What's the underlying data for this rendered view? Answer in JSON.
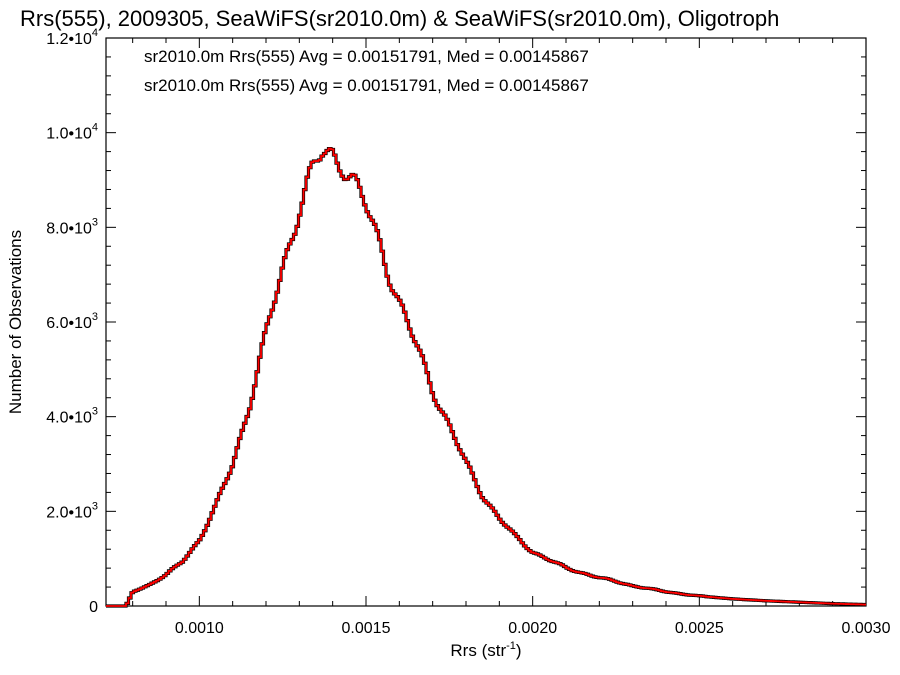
{
  "chart_data": {
    "type": "histogram",
    "title": "Rrs(555), 2009305, SeaWiFS(sr2010.0m) & SeaWiFS(sr2010.0m), Oligotroph",
    "xlabel": "Rrs (str",
    "xlabel_sup": "-1",
    "xlabel_close": ")",
    "ylabel": "Number of Observations",
    "xlim": [
      0.00072,
      0.003
    ],
    "ylim": [
      0,
      12000
    ],
    "x_ticks": [
      {
        "value": 0.001,
        "label": "0.0010"
      },
      {
        "value": 0.0015,
        "label": "0.0015"
      },
      {
        "value": 0.002,
        "label": "0.0020"
      },
      {
        "value": 0.0025,
        "label": "0.0025"
      },
      {
        "value": 0.003,
        "label": "0.0030"
      }
    ],
    "y_ticks": [
      {
        "value": 0,
        "mant": "0",
        "exp": ""
      },
      {
        "value": 2000,
        "mant": "2.0•10",
        "exp": "3"
      },
      {
        "value": 4000,
        "mant": "4.0•10",
        "exp": "3"
      },
      {
        "value": 6000,
        "mant": "6.0•10",
        "exp": "3"
      },
      {
        "value": 8000,
        "mant": "8.0•10",
        "exp": "3"
      },
      {
        "value": 10000,
        "mant": "1.0•10",
        "exp": "4"
      },
      {
        "value": 12000,
        "mant": "1.2•10",
        "exp": "4"
      }
    ],
    "annotations": [
      {
        "text": "sr2010.0m Rrs(555) Avg = 0.00151791, Med = 0.00145867",
        "color": "#000000"
      },
      {
        "text": "sr2010.0m Rrs(555) Avg = 0.00151791, Med = 0.00145867",
        "color": "#ff0000"
      }
    ],
    "series": [
      {
        "color": "#ff0000",
        "outline_color": "#000000",
        "points": [
          [
            0.00072,
            0
          ],
          [
            0.00078,
            0
          ],
          [
            0.0008,
            300
          ],
          [
            0.00085,
            450
          ],
          [
            0.0009,
            650
          ],
          [
            0.00095,
            950
          ],
          [
            0.001,
            1400
          ],
          [
            0.00105,
            2100
          ],
          [
            0.0011,
            3000
          ],
          [
            0.00115,
            4250
          ],
          [
            0.0012,
            5700
          ],
          [
            0.00125,
            7150
          ],
          [
            0.0013,
            8450
          ],
          [
            0.00134,
            9150
          ],
          [
            0.00137,
            9550
          ],
          [
            0.0014,
            9550
          ],
          [
            0.00143,
            9400
          ],
          [
            0.00146,
            9000
          ],
          [
            0.0015,
            8400
          ],
          [
            0.00155,
            7500
          ],
          [
            0.0016,
            6400
          ],
          [
            0.00165,
            5500
          ],
          [
            0.0017,
            4600
          ],
          [
            0.00175,
            3800
          ],
          [
            0.0018,
            3000
          ],
          [
            0.00185,
            2350
          ],
          [
            0.0019,
            1850
          ],
          [
            0.00195,
            1450
          ],
          [
            0.002,
            1150
          ],
          [
            0.0021,
            800
          ],
          [
            0.0022,
            600
          ],
          [
            0.0023,
            430
          ],
          [
            0.0024,
            300
          ],
          [
            0.0025,
            210
          ],
          [
            0.0026,
            150
          ],
          [
            0.0027,
            110
          ],
          [
            0.0028,
            80
          ],
          [
            0.0029,
            50
          ],
          [
            0.003,
            30
          ]
        ]
      }
    ]
  }
}
